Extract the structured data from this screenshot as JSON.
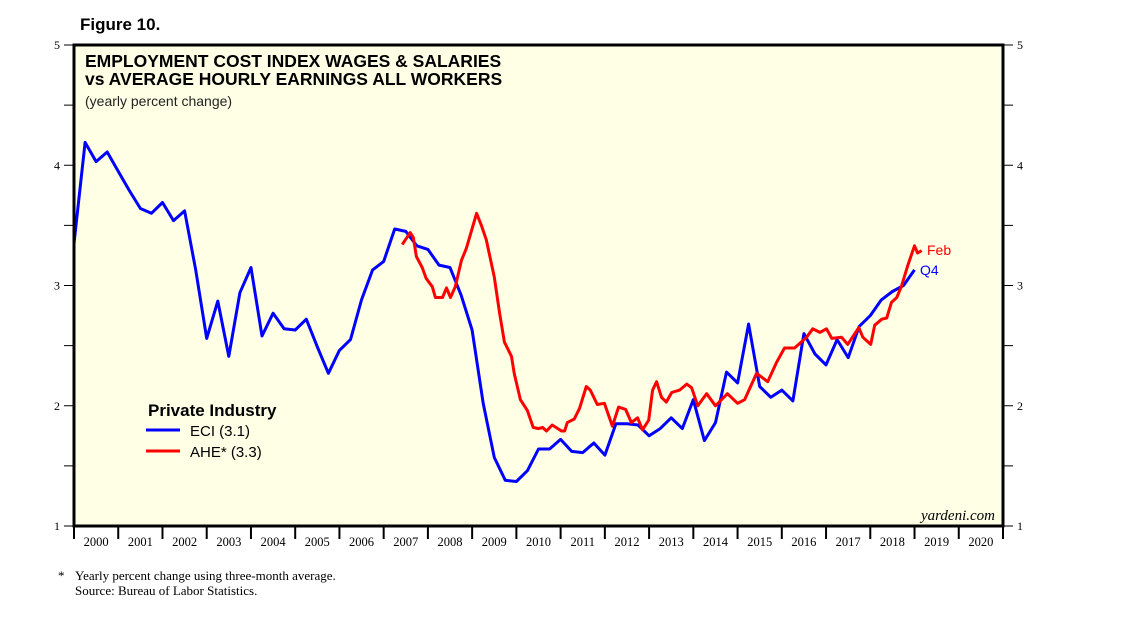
{
  "figure_label": "Figure 10.",
  "chart_data": {
    "type": "line",
    "title": "EMPLOYMENT COST INDEX WAGES & SALARIES",
    "subtitle": "vs AVERAGE HOURLY EARNINGS ALL WORKERS",
    "units_note": "(yearly percent change)",
    "xlabel": "",
    "ylabel": "",
    "xlim": [
      2000,
      2021
    ],
    "ylim": [
      1,
      5
    ],
    "y_ticks": [
      1,
      2,
      3,
      4,
      5
    ],
    "y_tick_labels": [
      "1",
      "2",
      "3",
      "4",
      "5"
    ],
    "x_tick_labels": [
      "2000",
      "2001",
      "2002",
      "2003",
      "2004",
      "2005",
      "2006",
      "2007",
      "2008",
      "2009",
      "2010",
      "2011",
      "2012",
      "2013",
      "2014",
      "2015",
      "2016",
      "2017",
      "2018",
      "2019",
      "2020"
    ],
    "grid": false,
    "background": "#ffffe6",
    "legend": {
      "placement": "lower-left",
      "title": "Private Industry",
      "entries": [
        "ECI (3.1)",
        "AHE* (3.3)"
      ]
    },
    "series": [
      {
        "name": "ECI",
        "color": "#0000ff",
        "end_label": "Q4",
        "x_start": 2000.0,
        "x_step": 0.25,
        "values": [
          3.35,
          4.19,
          4.03,
          4.11,
          3.95,
          3.79,
          3.64,
          3.6,
          3.69,
          3.54,
          3.62,
          3.13,
          2.56,
          2.87,
          2.41,
          2.94,
          3.15,
          2.58,
          2.77,
          2.64,
          2.63,
          2.72,
          2.49,
          2.27,
          2.46,
          2.55,
          2.88,
          3.13,
          3.2,
          3.47,
          3.45,
          3.33,
          3.3,
          3.17,
          3.15,
          2.92,
          2.63,
          2.02,
          1.57,
          1.38,
          1.37,
          1.46,
          1.64,
          1.64,
          1.72,
          1.62,
          1.61,
          1.69,
          1.59,
          1.85,
          1.85,
          1.84,
          1.75,
          1.81,
          1.9,
          1.81,
          2.05,
          1.71,
          1.86,
          2.28,
          2.19,
          2.68,
          2.16,
          2.07,
          2.13,
          2.04,
          2.6,
          2.43,
          2.34,
          2.55,
          2.4,
          2.66,
          2.75,
          2.88,
          2.95,
          3.0,
          3.13
        ]
      },
      {
        "name": "AHE*",
        "color": "#ff0000",
        "end_label": "Feb",
        "points": [
          [
            2007.42,
            3.34
          ],
          [
            2007.6,
            3.44
          ],
          [
            2007.67,
            3.4
          ],
          [
            2007.74,
            3.24
          ],
          [
            2007.87,
            3.15
          ],
          [
            2007.96,
            3.06
          ],
          [
            2008.1,
            2.99
          ],
          [
            2008.17,
            2.9
          ],
          [
            2008.26,
            2.9
          ],
          [
            2008.33,
            2.9
          ],
          [
            2008.42,
            2.98
          ],
          [
            2008.51,
            2.9
          ],
          [
            2008.62,
            2.99
          ],
          [
            2008.76,
            3.21
          ],
          [
            2008.87,
            3.31
          ],
          [
            2009.1,
            3.6
          ],
          [
            2009.21,
            3.5
          ],
          [
            2009.32,
            3.38
          ],
          [
            2009.5,
            3.07
          ],
          [
            2009.62,
            2.77
          ],
          [
            2009.73,
            2.53
          ],
          [
            2009.89,
            2.41
          ],
          [
            2009.95,
            2.27
          ],
          [
            2010.09,
            2.05
          ],
          [
            2010.25,
            1.96
          ],
          [
            2010.38,
            1.82
          ],
          [
            2010.5,
            1.81
          ],
          [
            2010.59,
            1.82
          ],
          [
            2010.68,
            1.79
          ],
          [
            2010.81,
            1.84
          ],
          [
            2011.02,
            1.79
          ],
          [
            2011.09,
            1.79
          ],
          [
            2011.15,
            1.86
          ],
          [
            2011.31,
            1.89
          ],
          [
            2011.43,
            1.98
          ],
          [
            2011.58,
            2.16
          ],
          [
            2011.67,
            2.13
          ],
          [
            2011.83,
            2.01
          ],
          [
            2011.99,
            2.02
          ],
          [
            2012.17,
            1.83
          ],
          [
            2012.31,
            1.99
          ],
          [
            2012.47,
            1.97
          ],
          [
            2012.6,
            1.86
          ],
          [
            2012.74,
            1.9
          ],
          [
            2012.85,
            1.8
          ],
          [
            2012.99,
            1.88
          ],
          [
            2013.08,
            2.13
          ],
          [
            2013.17,
            2.2
          ],
          [
            2013.28,
            2.07
          ],
          [
            2013.39,
            2.03
          ],
          [
            2013.51,
            2.11
          ],
          [
            2013.69,
            2.13
          ],
          [
            2013.85,
            2.18
          ],
          [
            2013.96,
            2.15
          ],
          [
            2014.1,
            2.0
          ],
          [
            2014.3,
            2.1
          ],
          [
            2014.5,
            2.0
          ],
          [
            2014.77,
            2.1
          ],
          [
            2015.0,
            2.02
          ],
          [
            2015.16,
            2.05
          ],
          [
            2015.27,
            2.14
          ],
          [
            2015.43,
            2.27
          ],
          [
            2015.68,
            2.2
          ],
          [
            2015.88,
            2.36
          ],
          [
            2016.06,
            2.48
          ],
          [
            2016.29,
            2.48
          ],
          [
            2016.56,
            2.57
          ],
          [
            2016.7,
            2.64
          ],
          [
            2016.86,
            2.61
          ],
          [
            2017.01,
            2.64
          ],
          [
            2017.13,
            2.56
          ],
          [
            2017.35,
            2.57
          ],
          [
            2017.49,
            2.51
          ],
          [
            2017.74,
            2.65
          ],
          [
            2017.83,
            2.57
          ],
          [
            2018.01,
            2.51
          ],
          [
            2018.1,
            2.67
          ],
          [
            2018.26,
            2.72
          ],
          [
            2018.37,
            2.73
          ],
          [
            2018.48,
            2.86
          ],
          [
            2018.6,
            2.9
          ],
          [
            2018.71,
            3.0
          ],
          [
            2018.85,
            3.17
          ],
          [
            2019.0,
            3.33
          ],
          [
            2019.07,
            3.27
          ],
          [
            2019.16,
            3.29
          ]
        ]
      }
    ],
    "watermark": "yardeni.com"
  },
  "footnotes": {
    "asterisk": "*",
    "note": "Yearly percent change using three-month average.",
    "source": "Source:  Bureau of Labor Statistics."
  }
}
